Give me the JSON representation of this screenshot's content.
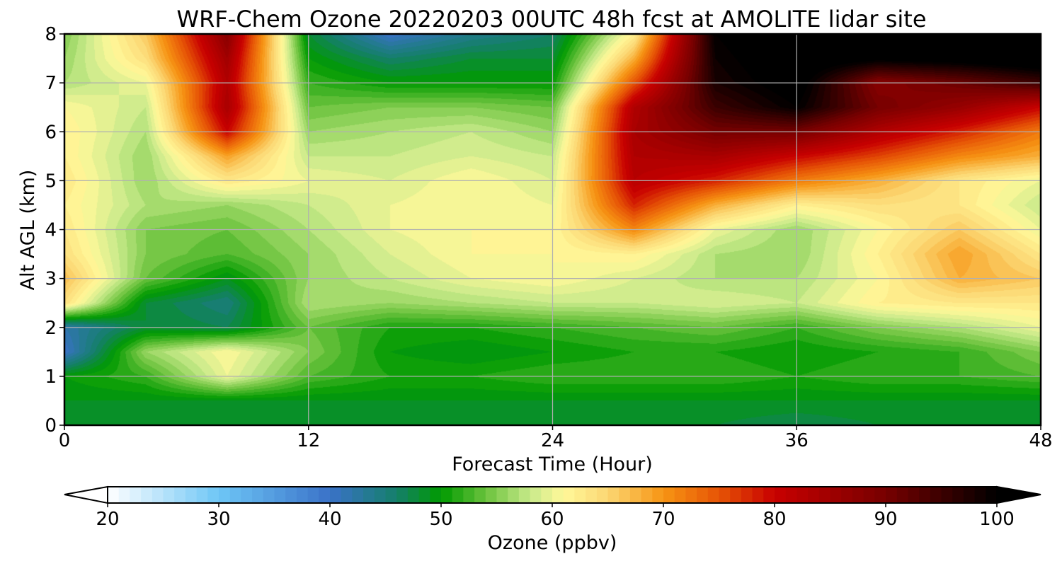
{
  "chart_data": {
    "type": "heatmap",
    "title": "WRF-Chem Ozone  20220203 00UTC 48h fcst at AMOLITE lidar site",
    "xlabel": "Forecast Time (Hour)",
    "ylabel": "Alt AGL (km)",
    "xlim": [
      0,
      48
    ],
    "ylim": [
      0,
      8
    ],
    "x_ticks": [
      "0",
      "12",
      "24",
      "36",
      "48"
    ],
    "y_ticks": [
      "0",
      "1",
      "2",
      "3",
      "4",
      "5",
      "6",
      "7",
      "8"
    ],
    "grid": true,
    "x_hours": [
      0,
      4,
      8,
      12,
      16,
      20,
      24,
      28,
      32,
      36,
      40,
      44,
      48
    ],
    "y_km": [
      0,
      0.5,
      1,
      1.5,
      2,
      2.5,
      3,
      3.5,
      4,
      4.5,
      5,
      5.5,
      6,
      6.5,
      7,
      7.5,
      8
    ],
    "values_ppbv": [
      [
        49,
        48,
        48,
        48,
        48,
        48,
        48,
        48,
        48,
        47,
        48,
        48,
        48
      ],
      [
        49,
        49,
        49,
        49,
        49,
        49,
        49,
        49,
        49,
        49,
        49,
        49,
        49
      ],
      [
        50,
        52,
        60,
        53,
        51,
        51,
        52,
        52,
        52,
        51,
        52,
        52,
        53
      ],
      [
        40,
        56,
        61,
        55,
        50,
        49,
        50,
        51,
        51,
        50,
        51,
        52,
        55
      ],
      [
        42,
        48,
        47,
        54,
        51,
        51,
        52,
        53,
        54,
        52,
        55,
        57,
        60
      ],
      [
        64,
        48,
        45,
        57,
        56,
        57,
        58,
        58,
        59,
        58,
        62,
        63,
        63
      ],
      [
        67,
        54,
        49,
        56,
        58,
        60,
        61,
        59,
        57,
        57,
        61,
        68,
        66
      ],
      [
        64,
        55,
        53,
        56,
        59,
        61,
        61,
        62,
        57,
        56,
        62,
        69,
        63
      ],
      [
        63,
        55,
        54,
        57,
        60,
        61,
        61,
        71,
        60,
        56,
        61,
        66,
        60
      ],
      [
        62,
        57,
        56,
        58,
        60,
        61,
        60,
        78,
        68,
        62,
        64,
        63,
        58
      ],
      [
        63,
        56,
        63,
        60,
        59,
        61,
        59,
        82,
        78,
        72,
        68,
        63,
        60
      ],
      [
        62,
        56,
        69,
        58,
        58,
        59,
        58,
        83,
        84,
        80,
        76,
        71,
        68
      ],
      [
        62,
        57,
        80,
        56,
        57,
        58,
        56,
        84,
        90,
        90,
        83,
        78,
        72
      ],
      [
        61,
        58,
        84,
        54,
        55,
        55,
        54,
        83,
        95,
        100,
        90,
        86,
        80
      ],
      [
        57,
        60,
        83,
        52,
        50,
        50,
        50,
        75,
        98,
        102,
        88,
        91,
        95
      ],
      [
        56,
        64,
        85,
        50,
        46,
        48,
        48,
        68,
        99,
        103,
        101,
        102,
        104
      ],
      [
        55,
        66,
        88,
        48,
        40,
        44,
        46,
        62,
        100,
        104,
        105,
        106,
        106
      ]
    ],
    "colorbar": {
      "label": "Ozone  (ppbv)",
      "ticks": [
        "20",
        "30",
        "40",
        "50",
        "60",
        "70",
        "80",
        "90",
        "100"
      ],
      "range": [
        20,
        100
      ],
      "extend": "both",
      "stops": [
        {
          "v": 20,
          "c": "#ffffff"
        },
        {
          "v": 30,
          "c": "#6ec6f6"
        },
        {
          "v": 40,
          "c": "#3a72c8"
        },
        {
          "v": 46,
          "c": "#157f6a"
        },
        {
          "v": 50,
          "c": "#009a00"
        },
        {
          "v": 54,
          "c": "#6ac23c"
        },
        {
          "v": 58,
          "c": "#c8ea8a"
        },
        {
          "v": 61,
          "c": "#fff89a"
        },
        {
          "v": 65,
          "c": "#fbd773"
        },
        {
          "v": 70,
          "c": "#f79413"
        },
        {
          "v": 75,
          "c": "#e65406"
        },
        {
          "v": 80,
          "c": "#c80000"
        },
        {
          "v": 90,
          "c": "#770000"
        },
        {
          "v": 100,
          "c": "#000000"
        }
      ]
    }
  }
}
